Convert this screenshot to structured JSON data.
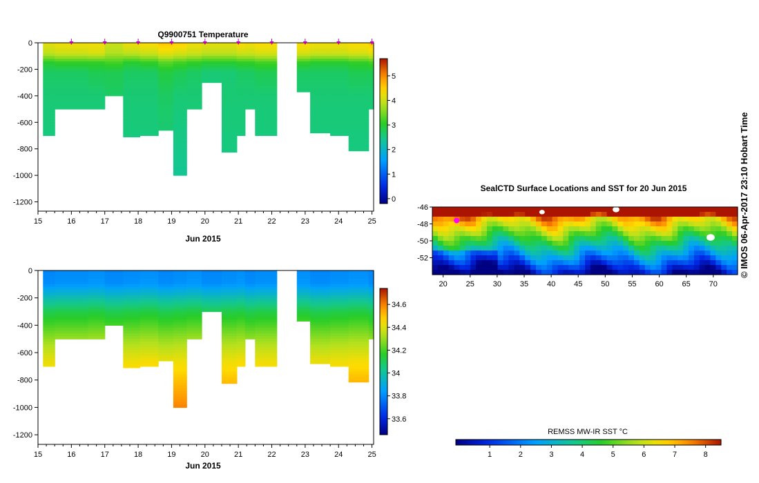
{
  "chart_data": [
    {
      "type": "heatmap",
      "title": "Q9900751  Temperature",
      "xlabel": "Jun 2015",
      "ylabel": "",
      "xlim": [
        15,
        25.05
      ],
      "ylim": [
        -1270,
        0
      ],
      "x_ticks": [
        "15",
        "16",
        "17",
        "18",
        "19",
        "20",
        "21",
        "22",
        "23",
        "24",
        "25"
      ],
      "y_ticks": [
        "0",
        "-200",
        "-400",
        "-600",
        "-800",
        "-1000",
        "-1200"
      ],
      "colorbar_ticks": [
        "0",
        "1",
        "2",
        "3",
        "4",
        "5"
      ],
      "colorbar_range": [
        -0.2,
        5.7
      ],
      "profile_markers_x": [
        16,
        17,
        18,
        19,
        20,
        21,
        22,
        23,
        24,
        25
      ],
      "profiles": [
        {
          "x0": 15.15,
          "x1": 15.5,
          "depth": 700
        },
        {
          "x0": 15.5,
          "x1": 16.5,
          "depth": 500
        },
        {
          "x0": 16.5,
          "x1": 17.0,
          "depth": 500
        },
        {
          "x0": 17.0,
          "x1": 17.55,
          "depth": 400
        },
        {
          "x0": 17.55,
          "x1": 18.05,
          "depth": 710
        },
        {
          "x0": 18.05,
          "x1": 18.6,
          "depth": 700
        },
        {
          "x0": 18.6,
          "x1": 19.05,
          "depth": 660
        },
        {
          "x0": 19.05,
          "x1": 19.45,
          "depth": 1000
        },
        {
          "x0": 19.45,
          "x1": 19.9,
          "depth": 500
        },
        {
          "x0": 19.9,
          "x1": 20.5,
          "depth": 300
        },
        {
          "x0": 20.5,
          "x1": 20.95,
          "depth": 825
        },
        {
          "x0": 20.95,
          "x1": 21.2,
          "depth": 700
        },
        {
          "x0": 21.2,
          "x1": 21.5,
          "depth": 500
        },
        {
          "x0": 21.5,
          "x1": 22.15,
          "depth": 700
        },
        {
          "x0": 22.75,
          "x1": 23.15,
          "depth": 370
        },
        {
          "x0": 23.15,
          "x1": 23.75,
          "depth": 680
        },
        {
          "x0": 23.75,
          "x1": 24.3,
          "depth": 700
        },
        {
          "x0": 24.3,
          "x1": 24.9,
          "depth": 815
        },
        {
          "x0": 24.9,
          "x1": 25.05,
          "depth": 500
        }
      ],
      "profile_values": [
        [
          [
            0,
            4.2
          ],
          [
            80,
            3.9
          ],
          [
            150,
            3.0
          ],
          [
            220,
            2.7
          ],
          [
            400,
            2.6
          ],
          [
            1000,
            2.5
          ]
        ],
        [
          [
            0,
            4.3
          ],
          [
            80,
            4.0
          ],
          [
            150,
            3.1
          ],
          [
            220,
            2.7
          ],
          [
            400,
            2.6
          ],
          [
            1000,
            2.5
          ]
        ],
        [
          [
            0,
            4.3
          ],
          [
            80,
            4.1
          ],
          [
            150,
            3.1
          ],
          [
            220,
            2.8
          ],
          [
            400,
            2.6
          ],
          [
            1000,
            2.5
          ]
        ],
        [
          [
            0,
            4.0
          ],
          [
            80,
            3.8
          ],
          [
            150,
            3.2
          ],
          [
            220,
            2.8
          ],
          [
            400,
            2.7
          ],
          [
            1000,
            2.6
          ]
        ],
        [
          [
            0,
            4.3
          ],
          [
            80,
            3.9
          ],
          [
            150,
            3.0
          ],
          [
            220,
            2.7
          ],
          [
            400,
            2.6
          ],
          [
            1000,
            2.5
          ]
        ],
        [
          [
            0,
            4.4
          ],
          [
            80,
            4.0
          ],
          [
            150,
            3.1
          ],
          [
            220,
            2.7
          ],
          [
            400,
            2.6
          ],
          [
            1000,
            2.5
          ]
        ],
        [
          [
            0,
            4.6
          ],
          [
            80,
            4.2
          ],
          [
            150,
            3.3
          ],
          [
            220,
            2.9
          ],
          [
            400,
            2.7
          ],
          [
            1000,
            2.5
          ]
        ],
        [
          [
            0,
            4.5
          ],
          [
            80,
            4.1
          ],
          [
            150,
            3.2
          ],
          [
            220,
            2.8
          ],
          [
            400,
            2.6
          ],
          [
            1000,
            2.4
          ]
        ],
        [
          [
            0,
            4.3
          ],
          [
            80,
            4.0
          ],
          [
            150,
            3.1
          ],
          [
            220,
            2.7
          ],
          [
            400,
            2.6
          ],
          [
            1000,
            2.5
          ]
        ],
        [
          [
            0,
            4.2
          ],
          [
            80,
            3.9
          ],
          [
            150,
            3.0
          ],
          [
            220,
            2.6
          ],
          [
            400,
            2.5
          ],
          [
            1000,
            2.5
          ]
        ],
        [
          [
            0,
            4.2
          ],
          [
            80,
            3.9
          ],
          [
            150,
            3.0
          ],
          [
            220,
            2.6
          ],
          [
            400,
            2.6
          ],
          [
            1000,
            2.5
          ]
        ],
        [
          [
            0,
            4.4
          ],
          [
            80,
            4.0
          ],
          [
            150,
            3.1
          ],
          [
            220,
            2.7
          ],
          [
            400,
            2.6
          ],
          [
            1000,
            2.5
          ]
        ],
        [
          [
            0,
            4.3
          ],
          [
            80,
            4.0
          ],
          [
            150,
            3.1
          ],
          [
            220,
            2.7
          ],
          [
            400,
            2.6
          ],
          [
            1000,
            2.5
          ]
        ],
        [
          [
            0,
            4.4
          ],
          [
            80,
            4.1
          ],
          [
            150,
            3.2
          ],
          [
            220,
            2.8
          ],
          [
            400,
            2.6
          ],
          [
            1000,
            2.5
          ]
        ],
        [
          [
            0,
            4.4
          ],
          [
            80,
            4.1
          ],
          [
            150,
            3.1
          ],
          [
            220,
            2.7
          ],
          [
            400,
            2.6
          ],
          [
            1000,
            2.5
          ]
        ],
        [
          [
            0,
            4.3
          ],
          [
            80,
            4.0
          ],
          [
            150,
            3.0
          ],
          [
            220,
            2.7
          ],
          [
            400,
            2.6
          ],
          [
            1000,
            2.5
          ]
        ],
        [
          [
            0,
            4.3
          ],
          [
            80,
            4.0
          ],
          [
            150,
            3.0
          ],
          [
            220,
            2.7
          ],
          [
            400,
            2.6
          ],
          [
            1000,
            2.5
          ]
        ],
        [
          [
            0,
            4.4
          ],
          [
            80,
            4.1
          ],
          [
            150,
            3.1
          ],
          [
            220,
            2.8
          ],
          [
            400,
            2.6
          ],
          [
            1000,
            2.5
          ]
        ],
        [
          [
            0,
            4.6
          ],
          [
            80,
            4.2
          ],
          [
            150,
            3.2
          ],
          [
            220,
            2.8
          ],
          [
            400,
            2.6
          ],
          [
            1000,
            2.5
          ]
        ]
      ]
    },
    {
      "type": "heatmap",
      "title": "",
      "xlabel": "Jun 2015",
      "ylabel": "",
      "xlim": [
        15,
        25.05
      ],
      "ylim": [
        -1270,
        0
      ],
      "x_ticks": [
        "15",
        "16",
        "17",
        "18",
        "19",
        "20",
        "21",
        "22",
        "23",
        "24",
        "25"
      ],
      "y_ticks": [
        "0",
        "-200",
        "-400",
        "-600",
        "-800",
        "-1000",
        "-1200"
      ],
      "colorbar_ticks": [
        "33.6",
        "33.8",
        "34",
        "34.2",
        "34.4",
        "34.6"
      ],
      "colorbar_range": [
        33.46,
        34.74
      ],
      "profiles_same_as_temperature": true,
      "profile_values": [
        [
          [
            0,
            33.8
          ],
          [
            100,
            33.82
          ],
          [
            200,
            33.98
          ],
          [
            300,
            34.12
          ],
          [
            480,
            34.28
          ],
          [
            650,
            34.42
          ],
          [
            800,
            34.5
          ],
          [
            1000,
            34.6
          ]
        ]
      ]
    },
    {
      "type": "heatmap",
      "title": "SealCTD Surface Locations and SST for 20 Jun 2015",
      "xlabel": "",
      "ylabel": "",
      "xlim": [
        18,
        74.5
      ],
      "ylim": [
        -54.0,
        -46.0
      ],
      "x_ticks": [
        "20",
        "25",
        "30",
        "35",
        "40",
        "45",
        "50",
        "55",
        "60",
        "65",
        "70"
      ],
      "y_ticks": [
        "-46",
        "-48",
        "-50",
        "-52"
      ],
      "colorbar_label": "REMSS MW-IR SST °C",
      "colorbar_ticks": [
        "1",
        "2",
        "3",
        "4",
        "5",
        "6",
        "7",
        "8"
      ],
      "colorbar_range": [
        -0.1,
        8.5
      ],
      "seal_location": {
        "lon": 22.5,
        "lat": -47.6
      }
    }
  ],
  "footer": {
    "copyright": "© IMOS 06-Apr-2017 23:10 Hobart Time"
  },
  "colors": {
    "land_white": "#ffffff",
    "marker": "#c000c0",
    "axis": "#000000"
  }
}
